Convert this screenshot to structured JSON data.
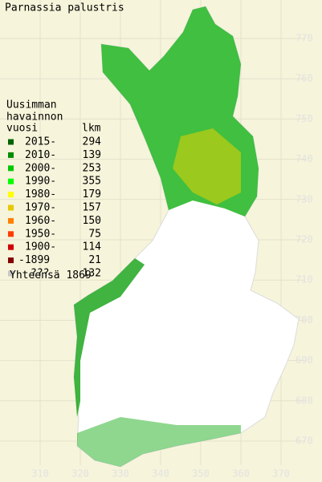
{
  "title": "Parnassia palustris",
  "legend": {
    "heading": [
      "Uusimman",
      "havainnon"
    ],
    "col_year": "vuosi",
    "col_count": "lkm",
    "items": [
      {
        "label": "2015-",
        "count": 294,
        "color": "#006400"
      },
      {
        "label": "2010-",
        "count": 139,
        "color": "#008c00"
      },
      {
        "label": "2000-",
        "count": 253,
        "color": "#00c800"
      },
      {
        "label": "1990-",
        "count": 355,
        "color": "#00ff00"
      },
      {
        "label": "1980-",
        "count": 179,
        "color": "#ffff00"
      },
      {
        "label": "1970-",
        "count": 157,
        "color": "#e6c800"
      },
      {
        "label": "1960-",
        "count": 150,
        "color": "#ff8000"
      },
      {
        "label": "1950-",
        "count": 75,
        "color": "#ff3c00"
      },
      {
        "label": "1900-",
        "count": 114,
        "color": "#d20000"
      },
      {
        "label": "-1899",
        "count": 21,
        "color": "#820000"
      },
      {
        "label": "???",
        "count": 132,
        "color": "#c8c8c8"
      }
    ],
    "total_label": "Yhteensä",
    "total": 1869
  },
  "xticks": [
    310,
    320,
    330,
    340,
    350,
    360,
    370
  ],
  "yticks": [
    770,
    760,
    750,
    740,
    730,
    720,
    710,
    700,
    690,
    680,
    670
  ]
}
